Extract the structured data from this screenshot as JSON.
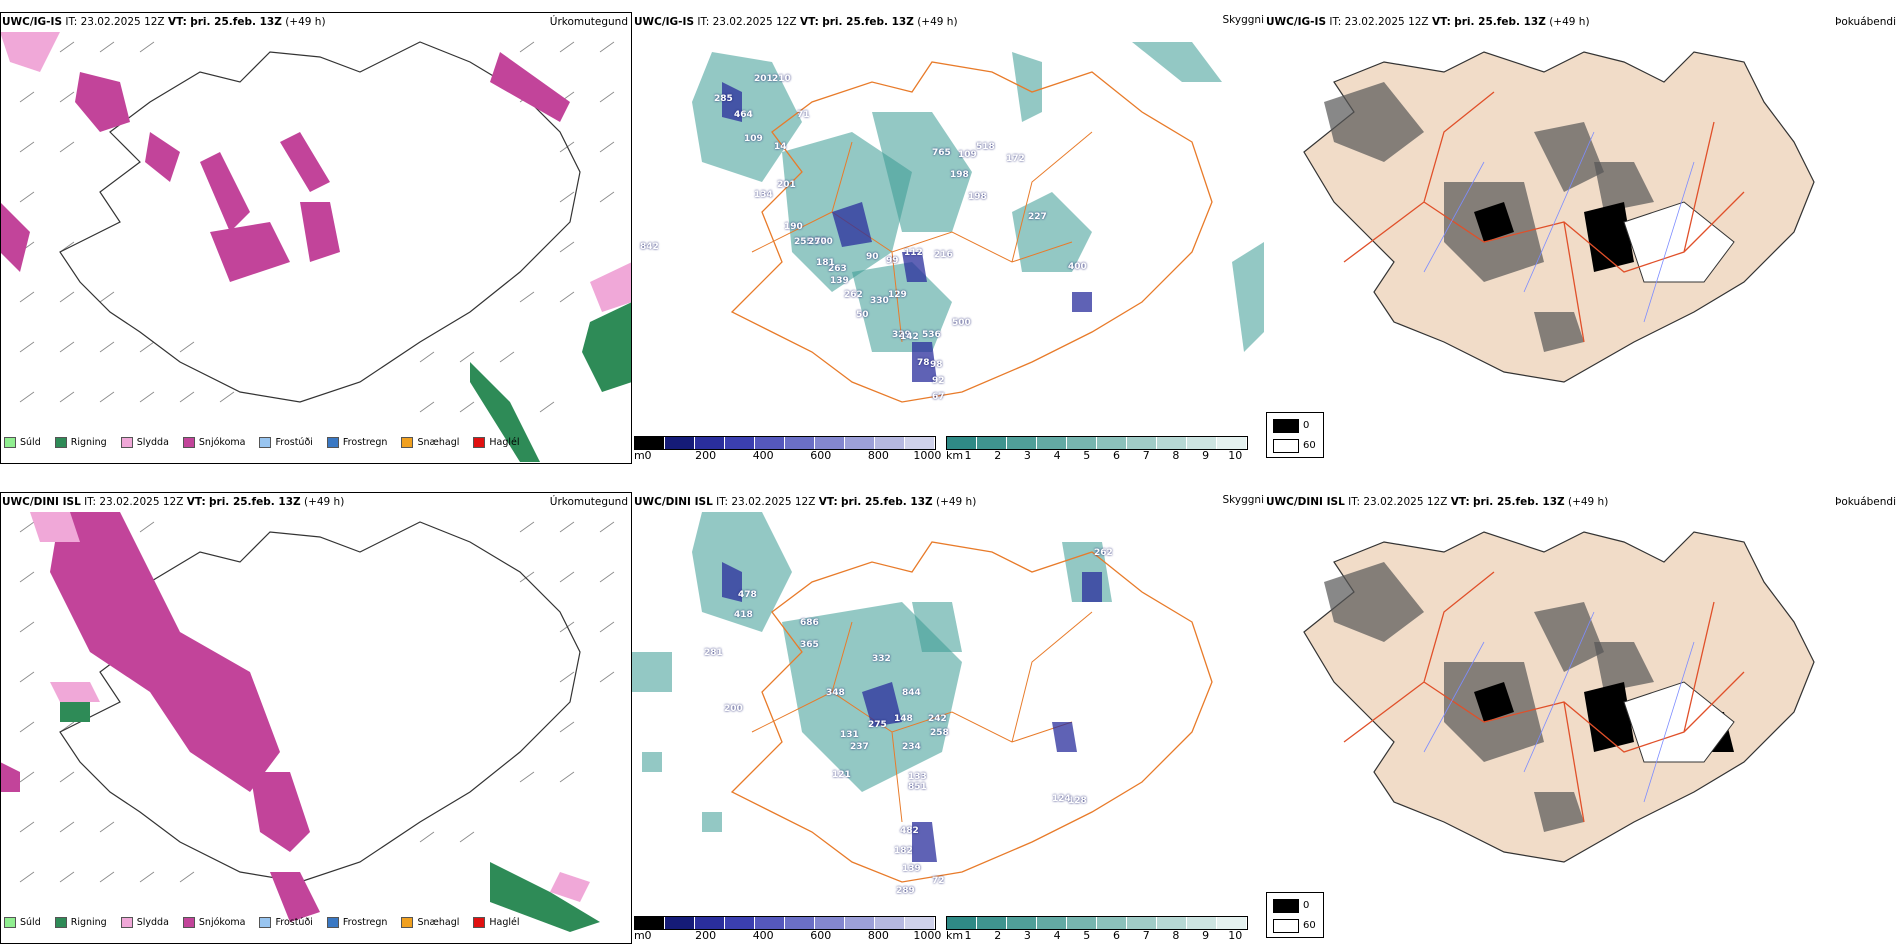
{
  "rows": [
    {
      "model": "UWC/IG-IS",
      "it_label": "IT:",
      "it_value": "23.02.2025 12Z",
      "vt_label": "VT:",
      "vt_value": "þri. 25.feb. 13Z",
      "lead": "(+49 h)",
      "panel_types": [
        "Úrkomutegund",
        "Skyggni",
        "Þokuábendi"
      ],
      "visibility_labels": [
        "285",
        "201",
        "210",
        "464",
        "109",
        "14",
        "71",
        "134",
        "201",
        "190",
        "255",
        "570",
        "270",
        "263",
        "181",
        "139",
        "90",
        "99",
        "112",
        "216",
        "262",
        "50",
        "330",
        "129",
        "329",
        "536",
        "142",
        "500",
        "98",
        "78",
        "92",
        "67",
        "198",
        "765",
        "109",
        "198",
        "518",
        "172",
        "227",
        "400",
        "842"
      ]
    },
    {
      "model": "UWC/DINI ISL",
      "it_label": "IT:",
      "it_value": "23.02.2025 12Z",
      "vt_label": "VT:",
      "vt_value": "þri. 25.feb. 13Z",
      "lead": "(+49 h)",
      "panel_types": [
        "Úrkomutegund",
        "Skyggni",
        "Þokuábendi"
      ],
      "visibility_labels": [
        "478",
        "418",
        "686",
        "365",
        "281",
        "332",
        "348",
        "844",
        "275",
        "148",
        "131",
        "237",
        "258",
        "242",
        "234",
        "133",
        "851",
        "121",
        "128",
        "482",
        "182",
        "139",
        "289",
        "72",
        "124",
        "262",
        "200"
      ]
    }
  ],
  "precip_legend": [
    {
      "label": "Súld",
      "color": "#90ee90"
    },
    {
      "label": "Rigning",
      "color": "#2e8b57"
    },
    {
      "label": "Slydda",
      "color": "#f0a8d8"
    },
    {
      "label": "Snjókoma",
      "color": "#c2449a"
    },
    {
      "label": "Frostúði",
      "color": "#99c5f0"
    },
    {
      "label": "Frostregn",
      "color": "#3a78c3"
    },
    {
      "label": "Snæhagl",
      "color": "#f0a020"
    },
    {
      "label": "Haglél",
      "color": "#e01010"
    }
  ],
  "ceiling_bar": {
    "unit": "m",
    "ticks": [
      "0",
      "200",
      "400",
      "600",
      "800",
      "1000"
    ],
    "colors": [
      "#000000",
      "#151b78",
      "#2a2e9c",
      "#3b3fb0",
      "#5558bd",
      "#6b6fc6",
      "#8487cf",
      "#9da0d8",
      "#b6b8e0",
      "#cfd1ea"
    ]
  },
  "visibility_bar": {
    "unit": "km",
    "ticks": [
      "1",
      "2",
      "3",
      "4",
      "5",
      "6",
      "7",
      "8",
      "9",
      "10"
    ],
    "colors": [
      "#2f8a86",
      "#3f948f",
      "#509f99",
      "#63aaa4",
      "#77b5af",
      "#8cc1bb",
      "#a1ccc7",
      "#b7d8d4",
      "#cde4e1",
      "#e4f1ef"
    ]
  },
  "fog_legend": {
    "values": [
      "0",
      "60"
    ],
    "colors": [
      "#000000",
      "#ffffff"
    ]
  },
  "colors": {
    "snow": "#c2449a",
    "sleet": "#f0a8d8",
    "rain": "#2e8b57",
    "teal": "#3b9a93",
    "ceiling": "#2a2e9c",
    "road": "#e87b2a",
    "road_red": "#e0502a",
    "land": "#f1dcc8",
    "river": "#7d8cff"
  }
}
